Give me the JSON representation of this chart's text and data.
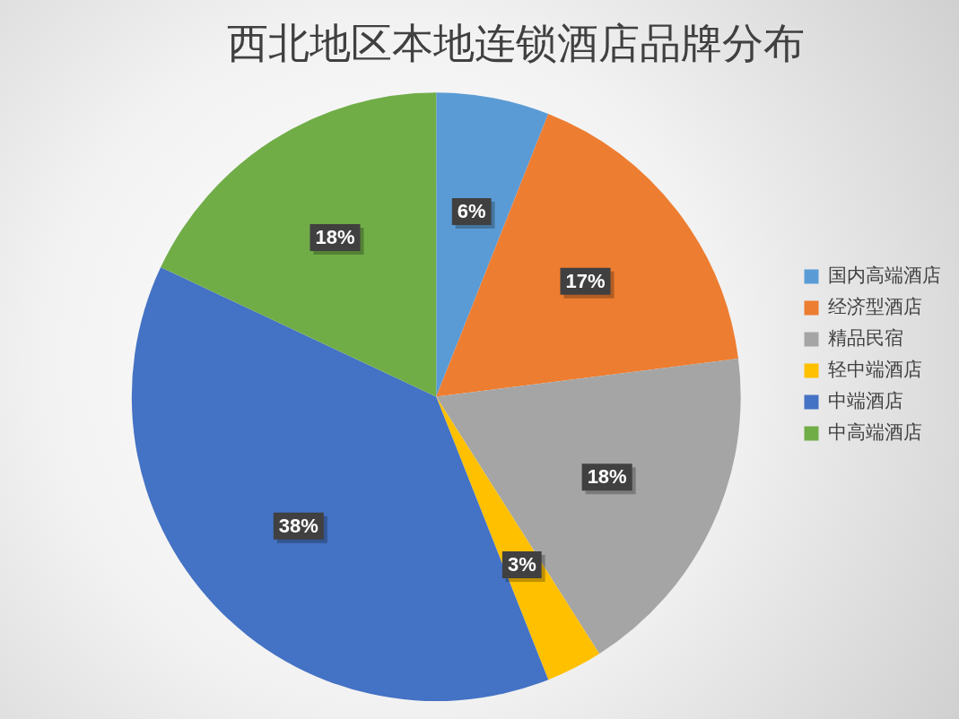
{
  "chart_data": {
    "type": "pie",
    "title": "西北地区本地连锁酒店品牌分布",
    "categories": [
      "国内高端酒店",
      "经济型酒店",
      "精品民宿",
      "轻中端酒店",
      "中端酒店",
      "中高端酒店"
    ],
    "values": [
      6,
      17,
      18,
      3,
      38,
      18
    ],
    "value_labels": [
      "6%",
      "17%",
      "18%",
      "3%",
      "38%",
      "18%"
    ],
    "colors": [
      "#5b9bd5",
      "#ed7d31",
      "#a5a5a5",
      "#ffc000",
      "#4472c4",
      "#70ad47"
    ],
    "legend": "right"
  }
}
